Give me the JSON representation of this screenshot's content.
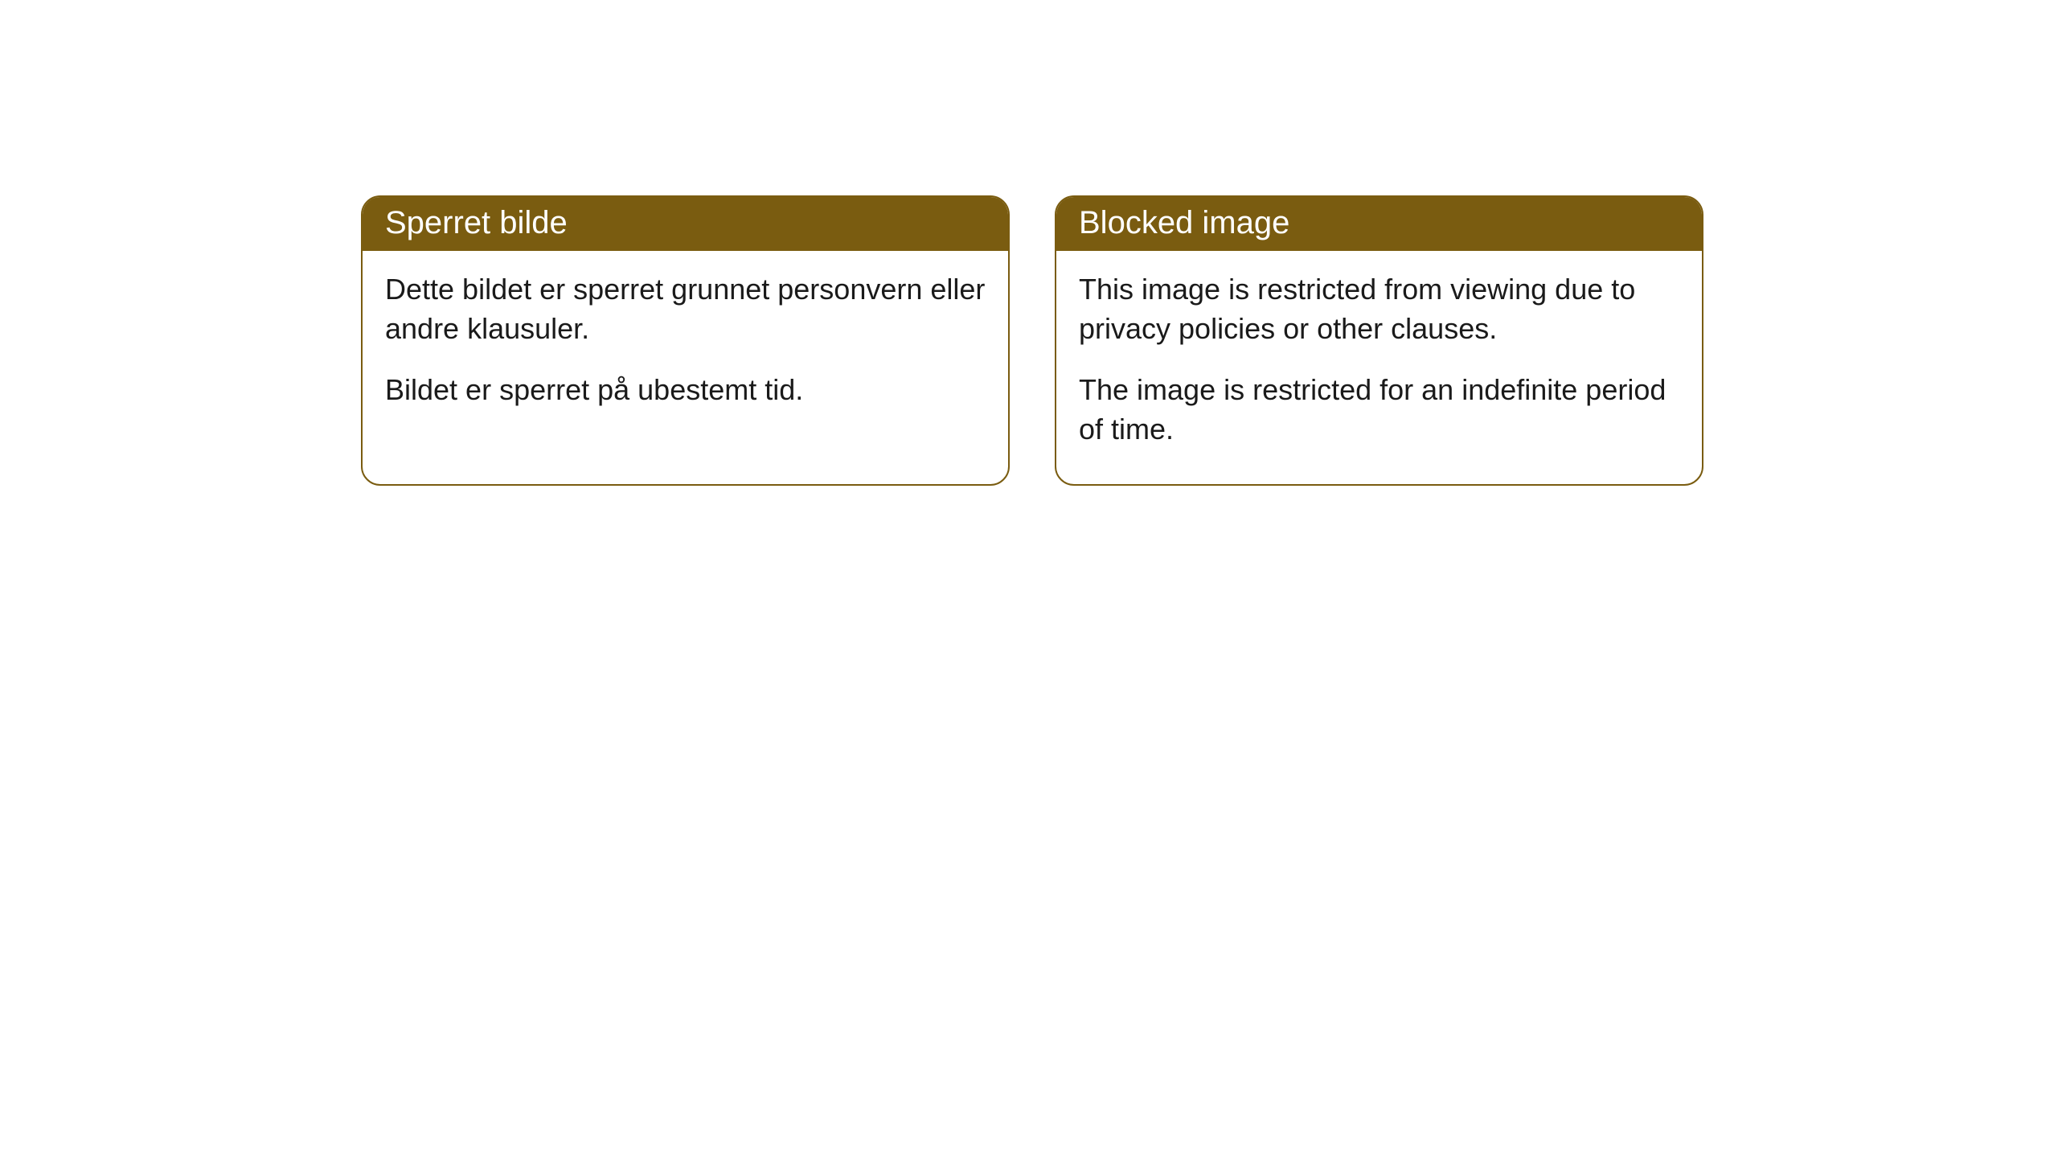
{
  "cards": [
    {
      "title": "Sperret bilde",
      "paragraph1": "Dette bildet er sperret grunnet personvern eller andre klausuler.",
      "paragraph2": "Bildet er sperret på ubestemt tid."
    },
    {
      "title": "Blocked image",
      "paragraph1": "This image is restricted from viewing due to privacy policies or other clauses.",
      "paragraph2": "The image is restricted for an indefinite period of time."
    }
  ],
  "styling": {
    "header_bg": "#7a5c10",
    "header_color": "#ffffff",
    "border_color": "#7a5c10",
    "body_bg": "#ffffff",
    "body_color": "#1a1a1a",
    "border_radius": 24,
    "title_fontsize": 40,
    "body_fontsize": 36
  }
}
